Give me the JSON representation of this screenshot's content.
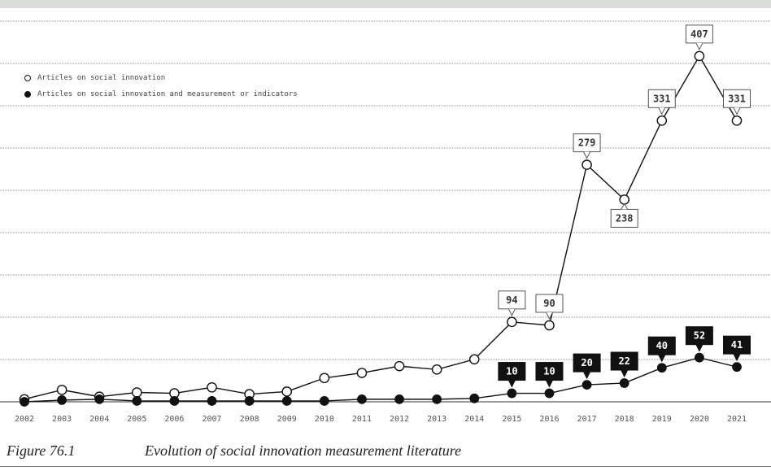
{
  "figure": {
    "label": "Figure 76.1",
    "caption": "Evolution of social innovation measurement literature"
  },
  "colors": {
    "background": "#ffffff",
    "grid": "#8f8f8f",
    "series": "#111111",
    "label_fill_dark": "#111111",
    "label_text_light": "#ffffff"
  },
  "chart_data": {
    "type": "line",
    "title": "",
    "xlabel": "",
    "ylabel": "",
    "categories": [
      "2002",
      "2003",
      "2004",
      "2005",
      "2006",
      "2007",
      "2008",
      "2009",
      "2010",
      "2011",
      "2012",
      "2013",
      "2014",
      "2015",
      "2016",
      "2017",
      "2018",
      "2019",
      "2020",
      "2021"
    ],
    "ylim": [
      0,
      450
    ],
    "grid": true,
    "legend_position": "top-left",
    "series": [
      {
        "name": "Articles on social innovation",
        "marker": "open-circle",
        "values": [
          3,
          14,
          6,
          11,
          10,
          17,
          9,
          12,
          28,
          34,
          42,
          38,
          50,
          94,
          90,
          279,
          238,
          331,
          407,
          331
        ],
        "labels": [
          null,
          null,
          null,
          null,
          null,
          null,
          null,
          null,
          null,
          null,
          null,
          null,
          null,
          "94",
          "90",
          "279",
          "238",
          "331",
          "407",
          "331"
        ]
      },
      {
        "name": "Articles on social innovation and measurement or indicators",
        "marker": "filled-circle",
        "values": [
          0,
          2,
          3,
          1,
          1,
          1,
          1,
          1,
          1,
          3,
          3,
          3,
          4,
          10,
          10,
          20,
          22,
          40,
          52,
          41
        ],
        "labels": [
          null,
          null,
          null,
          null,
          null,
          null,
          null,
          null,
          null,
          null,
          null,
          null,
          null,
          "10",
          "10",
          "20",
          "22",
          "40",
          "52",
          "41"
        ]
      }
    ]
  }
}
